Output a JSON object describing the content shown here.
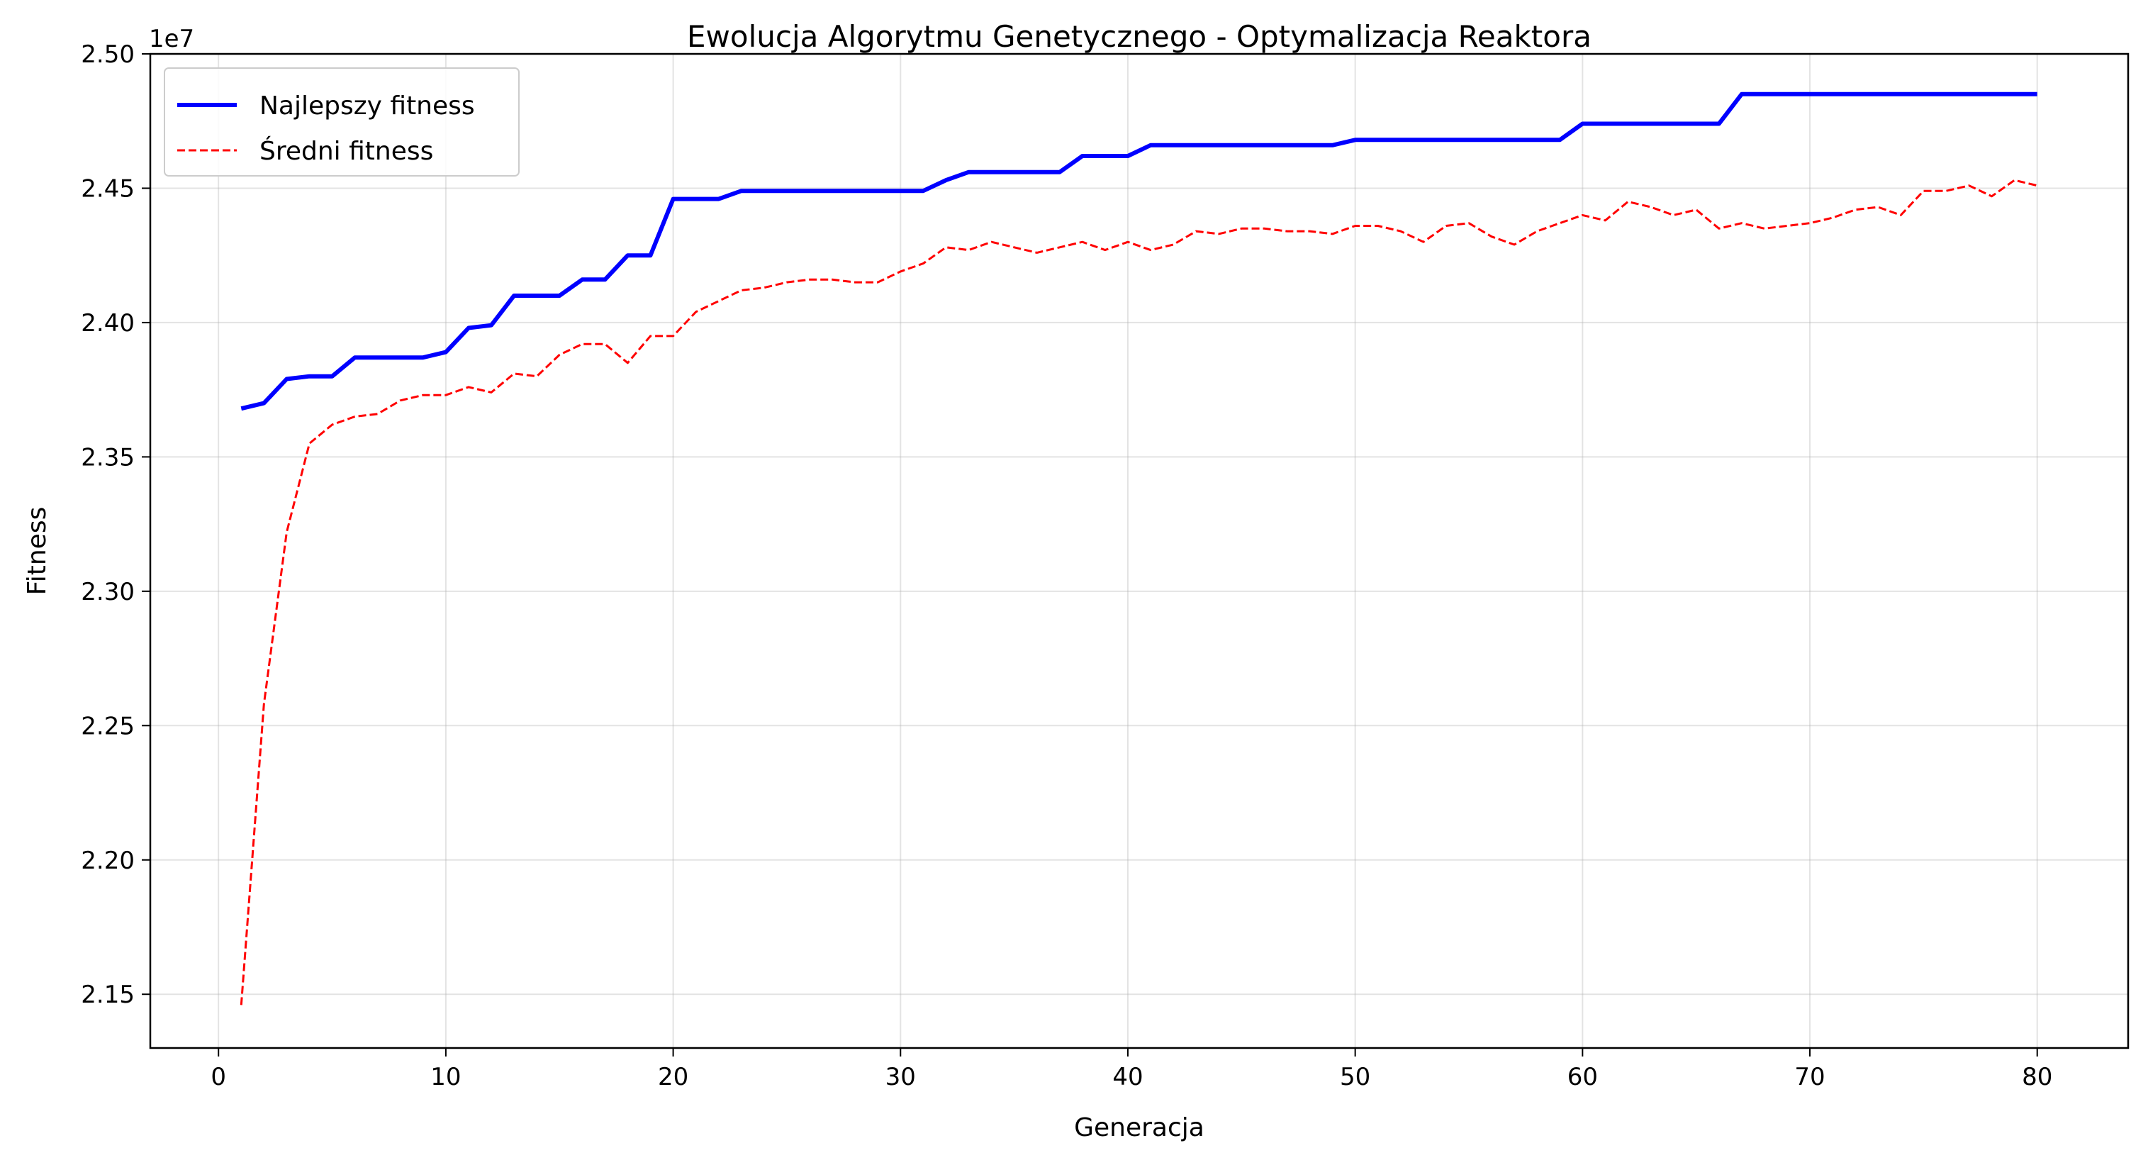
{
  "chart_data": {
    "type": "line",
    "title": "Ewolucja Algorytmu Genetycznego - Optymalizacja Reaktora",
    "xlabel": "Generacja",
    "ylabel": "Fitness",
    "y_offset_label": "1e7",
    "xlim": [
      -3,
      84
    ],
    "ylim": [
      2.13,
      2.5
    ],
    "xticks": [
      0,
      10,
      20,
      30,
      40,
      50,
      60,
      70,
      80
    ],
    "yticks": [
      2.15,
      2.2,
      2.25,
      2.3,
      2.35,
      2.4,
      2.45,
      2.5
    ],
    "ytick_labels": [
      "2.15",
      "2.20",
      "2.25",
      "2.30",
      "2.35",
      "2.40",
      "2.45",
      "2.50"
    ],
    "grid": true,
    "legend_position": "top-left",
    "x": [
      1,
      2,
      3,
      4,
      5,
      6,
      7,
      8,
      9,
      10,
      11,
      12,
      13,
      14,
      15,
      16,
      17,
      18,
      19,
      20,
      21,
      22,
      23,
      24,
      25,
      26,
      27,
      28,
      29,
      30,
      31,
      32,
      33,
      34,
      35,
      36,
      37,
      38,
      39,
      40,
      41,
      42,
      43,
      44,
      45,
      46,
      47,
      48,
      49,
      50,
      51,
      52,
      53,
      54,
      55,
      56,
      57,
      58,
      59,
      60,
      61,
      62,
      63,
      64,
      65,
      66,
      67,
      68,
      69,
      70,
      71,
      72,
      73,
      74,
      75,
      76,
      77,
      78,
      79,
      80
    ],
    "series": [
      {
        "name": "Najlepszy fitness",
        "color": "#0000ff",
        "style": "solid",
        "values": [
          2.368,
          2.37,
          2.379,
          2.38,
          2.38,
          2.387,
          2.387,
          2.387,
          2.387,
          2.389,
          2.398,
          2.399,
          2.41,
          2.41,
          2.41,
          2.416,
          2.416,
          2.425,
          2.425,
          2.446,
          2.446,
          2.446,
          2.449,
          2.449,
          2.449,
          2.449,
          2.449,
          2.449,
          2.449,
          2.449,
          2.449,
          2.453,
          2.456,
          2.456,
          2.456,
          2.456,
          2.456,
          2.462,
          2.462,
          2.462,
          2.466,
          2.466,
          2.466,
          2.466,
          2.466,
          2.466,
          2.466,
          2.466,
          2.466,
          2.468,
          2.468,
          2.468,
          2.468,
          2.468,
          2.468,
          2.468,
          2.468,
          2.468,
          2.468,
          2.474,
          2.474,
          2.474,
          2.474,
          2.474,
          2.474,
          2.474,
          2.485,
          2.485,
          2.485,
          2.485,
          2.485,
          2.485,
          2.485,
          2.485,
          2.485,
          2.485,
          2.485,
          2.485,
          2.485,
          2.485
        ]
      },
      {
        "name": "Średni fitness",
        "color": "#ff0000",
        "style": "dashed",
        "values": [
          2.146,
          2.258,
          2.322,
          2.355,
          2.362,
          2.365,
          2.366,
          2.371,
          2.373,
          2.373,
          2.376,
          2.374,
          2.381,
          2.38,
          2.388,
          2.392,
          2.392,
          2.385,
          2.395,
          2.395,
          2.404,
          2.408,
          2.412,
          2.413,
          2.415,
          2.416,
          2.416,
          2.415,
          2.415,
          2.419,
          2.422,
          2.428,
          2.427,
          2.43,
          2.428,
          2.426,
          2.428,
          2.43,
          2.427,
          2.43,
          2.427,
          2.429,
          2.434,
          2.433,
          2.435,
          2.435,
          2.434,
          2.434,
          2.433,
          2.436,
          2.436,
          2.434,
          2.43,
          2.436,
          2.437,
          2.432,
          2.429,
          2.434,
          2.437,
          2.44,
          2.438,
          2.445,
          2.443,
          2.44,
          2.442,
          2.435,
          2.437,
          2.435,
          2.436,
          2.437,
          2.439,
          2.442,
          2.443,
          2.44,
          2.449,
          2.449,
          2.451,
          2.447,
          2.453,
          2.451
        ]
      }
    ]
  }
}
